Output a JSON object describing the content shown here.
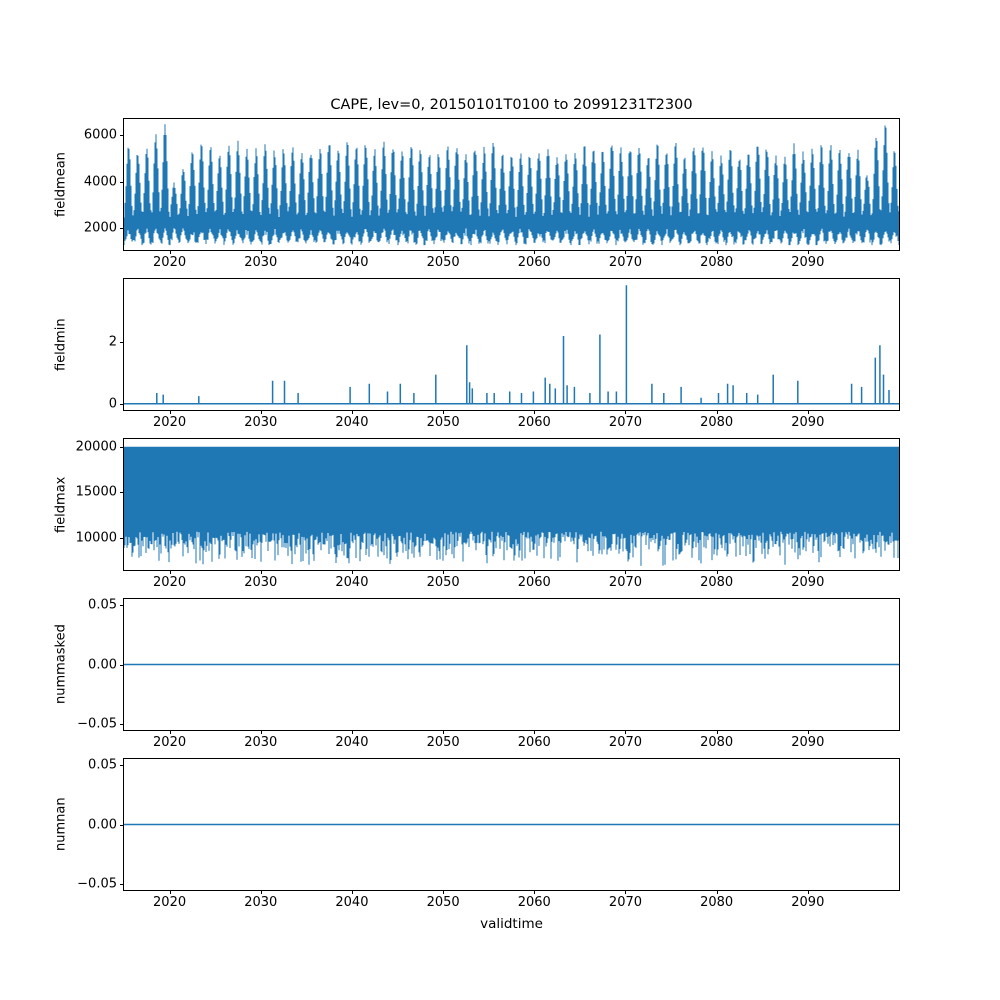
{
  "figure": {
    "title": "CAPE, lev=0, 20150101T0100 to 20991231T2300",
    "xlabel": "validtime",
    "x_range": [
      2015,
      2100
    ],
    "x_ticks": [
      {
        "value": 2020,
        "label": "2020"
      },
      {
        "value": 2030,
        "label": "2030"
      },
      {
        "value": 2040,
        "label": "2040"
      },
      {
        "value": 2050,
        "label": "2050"
      },
      {
        "value": 2060,
        "label": "2060"
      },
      {
        "value": 2070,
        "label": "2070"
      },
      {
        "value": 2080,
        "label": "2080"
      },
      {
        "value": 2090,
        "label": "2090"
      }
    ],
    "line_color": "#1f77b4",
    "background": "#ffffff"
  },
  "chart_data": [
    {
      "name": "fieldmean",
      "type": "envelope",
      "ylabel": "fieldmean",
      "ylim": [
        1050,
        6700
      ],
      "y_ticks": [
        {
          "value": 2000,
          "label": "2000"
        },
        {
          "value": 4000,
          "label": "4000"
        },
        {
          "value": 6000,
          "label": "6000"
        }
      ],
      "seed": 7,
      "stroke_width": 1,
      "envelope": {
        "top_base": 2600,
        "peak_min": 5050,
        "peak_max": 5700,
        "bottom_base": 1330,
        "bottom_seasonal": 520,
        "bottom_floor": 1260,
        "top_noise": 300,
        "bottom_noise": 280,
        "min_span": 500,
        "peak_anomalies": {
          "2018": 6000,
          "2019": 6400,
          "2020": 3900,
          "2021": 4500,
          "2096": 4300,
          "2097": 6000,
          "2098": 6450,
          "2099": 5300
        }
      },
      "description": "Dense annual oscillation between ~1300 and ~5600, anomaly peaks ~6400 near 2019 and 2098"
    },
    {
      "name": "fieldmin",
      "type": "spikes",
      "ylabel": "fieldmin",
      "ylim": [
        -0.2,
        4.05
      ],
      "y_ticks": [
        {
          "value": 0,
          "label": "0"
        },
        {
          "value": 2,
          "label": "2"
        }
      ],
      "baseline": 0,
      "stroke_width": 1.5,
      "spikes": [
        [
          2018.6,
          0.35
        ],
        [
          2019.3,
          0.3
        ],
        [
          2023.2,
          0.25
        ],
        [
          2031.3,
          0.75
        ],
        [
          2032.6,
          0.75
        ],
        [
          2034.1,
          0.35
        ],
        [
          2039.8,
          0.55
        ],
        [
          2041.9,
          0.65
        ],
        [
          2043.9,
          0.4
        ],
        [
          2045.3,
          0.65
        ],
        [
          2046.8,
          0.35
        ],
        [
          2049.2,
          0.95
        ],
        [
          2052.6,
          1.9
        ],
        [
          2052.9,
          0.7
        ],
        [
          2053.2,
          0.5
        ],
        [
          2054.8,
          0.35
        ],
        [
          2055.6,
          0.35
        ],
        [
          2057.3,
          0.4
        ],
        [
          2058.6,
          0.35
        ],
        [
          2059.9,
          0.4
        ],
        [
          2061.2,
          0.85
        ],
        [
          2061.7,
          0.65
        ],
        [
          2062.3,
          0.5
        ],
        [
          2063.2,
          2.2
        ],
        [
          2063.6,
          0.6
        ],
        [
          2064.4,
          0.55
        ],
        [
          2066.1,
          0.35
        ],
        [
          2067.2,
          2.25
        ],
        [
          2068.1,
          0.4
        ],
        [
          2069.0,
          0.4
        ],
        [
          2070.1,
          3.85
        ],
        [
          2072.9,
          0.65
        ],
        [
          2074.2,
          0.35
        ],
        [
          2076.1,
          0.55
        ],
        [
          2078.3,
          0.2
        ],
        [
          2080.2,
          0.35
        ],
        [
          2081.2,
          0.65
        ],
        [
          2081.8,
          0.6
        ],
        [
          2083.3,
          0.35
        ],
        [
          2084.5,
          0.3
        ],
        [
          2086.2,
          0.95
        ],
        [
          2088.9,
          0.75
        ],
        [
          2094.8,
          0.65
        ],
        [
          2095.9,
          0.55
        ],
        [
          2097.4,
          1.5
        ],
        [
          2097.9,
          1.9
        ],
        [
          2098.3,
          0.95
        ],
        [
          2098.9,
          0.45
        ]
      ],
      "description": "Mostly zero with sparse positive spikes; max ~3.85 at 2070"
    },
    {
      "name": "fieldmax",
      "type": "envelope_top",
      "ylabel": "fieldmax",
      "ylim": [
        6500,
        20850
      ],
      "y_ticks": [
        {
          "value": 10000,
          "label": "10000"
        },
        {
          "value": 15000,
          "label": "15000"
        },
        {
          "value": 20000,
          "label": "20000"
        }
      ],
      "seed": 11,
      "stroke_width": 1,
      "envelope": {
        "top_value": 20000,
        "bottom_min": 6900,
        "bottom_spread": 3800
      },
      "description": "Saturated at ~20000 on top; ragged lower envelope between ~7000 and ~10700"
    },
    {
      "name": "nummasked",
      "type": "hline",
      "ylabel": "nummasked",
      "ylim": [
        -0.0555,
        0.0555
      ],
      "y_ticks": [
        {
          "value": -0.05,
          "label": "−0.05"
        },
        {
          "value": 0,
          "label": "0.00"
        },
        {
          "value": 0.05,
          "label": "0.05"
        }
      ],
      "value": 0,
      "stroke_width": 1.5,
      "description": "Constant 0.00 over full period"
    },
    {
      "name": "numnan",
      "type": "hline",
      "ylabel": "numnan",
      "ylim": [
        -0.0555,
        0.0555
      ],
      "y_ticks": [
        {
          "value": -0.05,
          "label": "−0.05"
        },
        {
          "value": 0,
          "label": "0.00"
        },
        {
          "value": 0.05,
          "label": "0.05"
        }
      ],
      "value": 0,
      "stroke_width": 1.5,
      "description": "Constant 0.00 over full period"
    }
  ]
}
